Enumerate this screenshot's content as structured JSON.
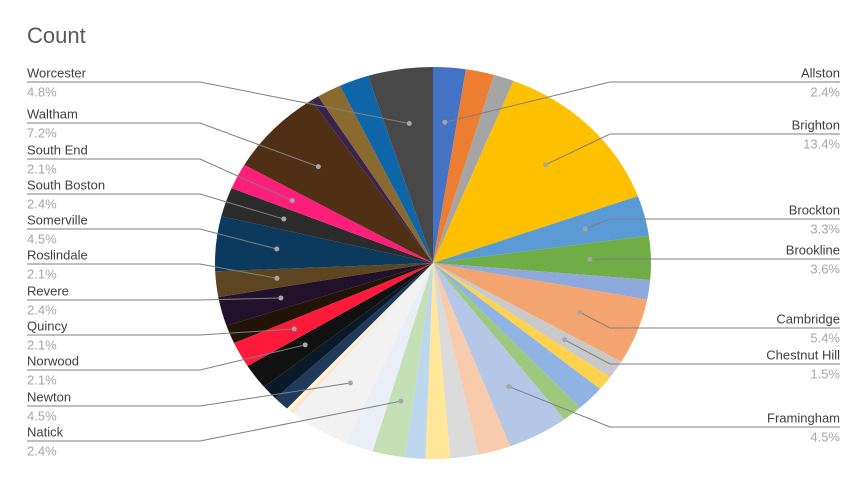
{
  "chart_data": {
    "type": "pie",
    "title": "Count",
    "categories": [
      "Allston",
      null,
      null,
      "Brighton",
      "Brockton",
      "Brookline",
      null,
      "Cambridge",
      "Chestnut Hill",
      null,
      null,
      null,
      "Framingham",
      null,
      null,
      null,
      null,
      "Natick",
      null,
      "Newton",
      null,
      null,
      null,
      null,
      "Norwood",
      "Quincy",
      null,
      "Revere",
      "Roslindale",
      "Somerville",
      "South Boston",
      "South End",
      "Waltham",
      null,
      null,
      null,
      "Worcester"
    ],
    "values": [
      2.4,
      2.1,
      1.5,
      13.4,
      3.3,
      3.6,
      1.6,
      5.4,
      1.5,
      1.2,
      2.1,
      1.5,
      4.5,
      2.4,
      2.1,
      1.8,
      1.5,
      2.4,
      2.1,
      4.5,
      0.3,
      0.3,
      1.2,
      1.2,
      2.1,
      2.1,
      1.5,
      2.4,
      2.1,
      4.5,
      2.4,
      2.1,
      7.2,
      0.6,
      1.8,
      2.2,
      4.8
    ],
    "value_labels": [
      "2.4%",
      null,
      null,
      "13.4%",
      "3.3%",
      "3.6%",
      null,
      "5.4%",
      "1.5%",
      null,
      null,
      null,
      "4.5%",
      null,
      null,
      null,
      null,
      "2.4%",
      null,
      "4.5%",
      null,
      null,
      null,
      null,
      "2.1%",
      "2.1%",
      null,
      "2.4%",
      "2.1%",
      "4.5%",
      "2.4%",
      "2.1%",
      "7.2%",
      null,
      null,
      null,
      "4.8%"
    ],
    "colors": [
      "#4472c4",
      "#ed7d31",
      "#a5a5a5",
      "#ffc000",
      "#5b9bd5",
      "#70ad47",
      "#8ea9db",
      "#f4a46f",
      "#c9c9c9",
      "#ffd24d",
      "#8fb4e3",
      "#9dc97f",
      "#b4c7e7",
      "#f8cbad",
      "#dbdbdb",
      "#ffe699",
      "#bdd7ee",
      "#c5e0b4",
      "#e9eef7",
      "#f2f2f2",
      "#fbe5d6",
      "#fff2cc",
      "#1f3a5a",
      "#0a1a2a",
      "#111111",
      "#ff1a3c",
      "#221508",
      "#22112a",
      "#5c4520",
      "#0c3a5e",
      "#2b2b2b",
      "#ff1f7a",
      "#4f3014",
      "#3b2350",
      "#8a6a2e",
      "#0e66a8",
      "#484848"
    ]
  }
}
